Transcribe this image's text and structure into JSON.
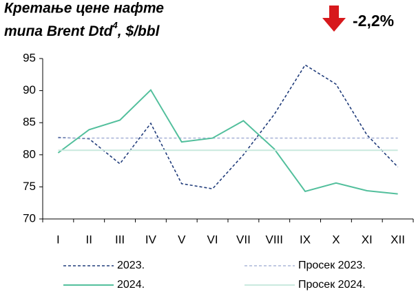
{
  "chart_data": {
    "type": "line",
    "title": "Кретање цене нафте",
    "title_line2": "типа Brent Dtd",
    "title_footnote": "4",
    "title_unit": ", $/bbl",
    "annotation": "-2,2%",
    "annotation_color": "#d7191c",
    "categories": [
      "I",
      "II",
      "III",
      "IV",
      "V",
      "VI",
      "VII",
      "VIII",
      "IX",
      "X",
      "XI",
      "XII"
    ],
    "series": [
      {
        "name": "2023.",
        "color": "#1f3b7a",
        "dash": "dashed",
        "values": [
          82.7,
          82.5,
          78.6,
          84.9,
          75.5,
          74.7,
          80.0,
          86.3,
          94.0,
          91.0,
          83.1,
          78.1
        ]
      },
      {
        "name": "Просек 2023.",
        "color": "#aab5d8",
        "dash": "dashed",
        "values": [
          82.6,
          82.6,
          82.6,
          82.6,
          82.6,
          82.6,
          82.6,
          82.6,
          82.6,
          82.6,
          82.6,
          82.6
        ]
      },
      {
        "name": "2024.",
        "color": "#52bf9c",
        "dash": "solid",
        "values": [
          80.3,
          83.9,
          85.4,
          90.1,
          82.0,
          82.6,
          85.3,
          80.9,
          74.3,
          75.6,
          74.4,
          73.9
        ]
      },
      {
        "name": "Просек 2024.",
        "color": "#c9e9de",
        "dash": "solid",
        "values": [
          80.7,
          80.7,
          80.7,
          80.7,
          80.7,
          80.7,
          80.7,
          80.7,
          80.7,
          80.7,
          80.7,
          80.7
        ]
      }
    ],
    "ylim": [
      70,
      95
    ],
    "yticks": [
      70,
      75,
      80,
      85,
      90,
      95
    ],
    "grid": false
  }
}
